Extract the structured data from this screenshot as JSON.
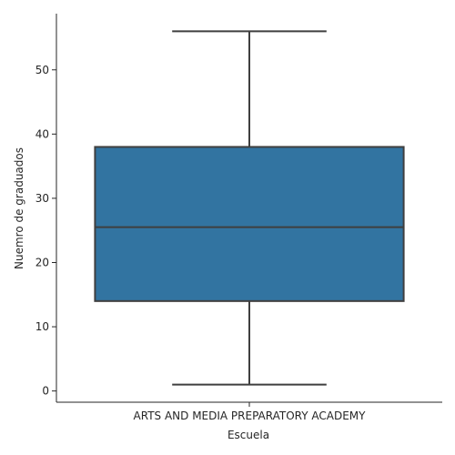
{
  "chart_data": {
    "type": "box",
    "categories": [
      "ARTS AND MEDIA PREPARATORY ACADEMY"
    ],
    "boxes": [
      {
        "category": "ARTS AND MEDIA PREPARATORY ACADEMY",
        "min": 1,
        "q1": 14,
        "median": 25.5,
        "q3": 38,
        "max": 56
      }
    ],
    "xlabel": "Escuela",
    "ylabel": "Nuemro de graduados",
    "yticks": [
      0,
      10,
      20,
      30,
      40,
      50
    ],
    "ylim": [
      -1.75,
      58.75
    ],
    "grid": false,
    "box_color": "#3274a1",
    "line_color": "#3f3f3f"
  }
}
